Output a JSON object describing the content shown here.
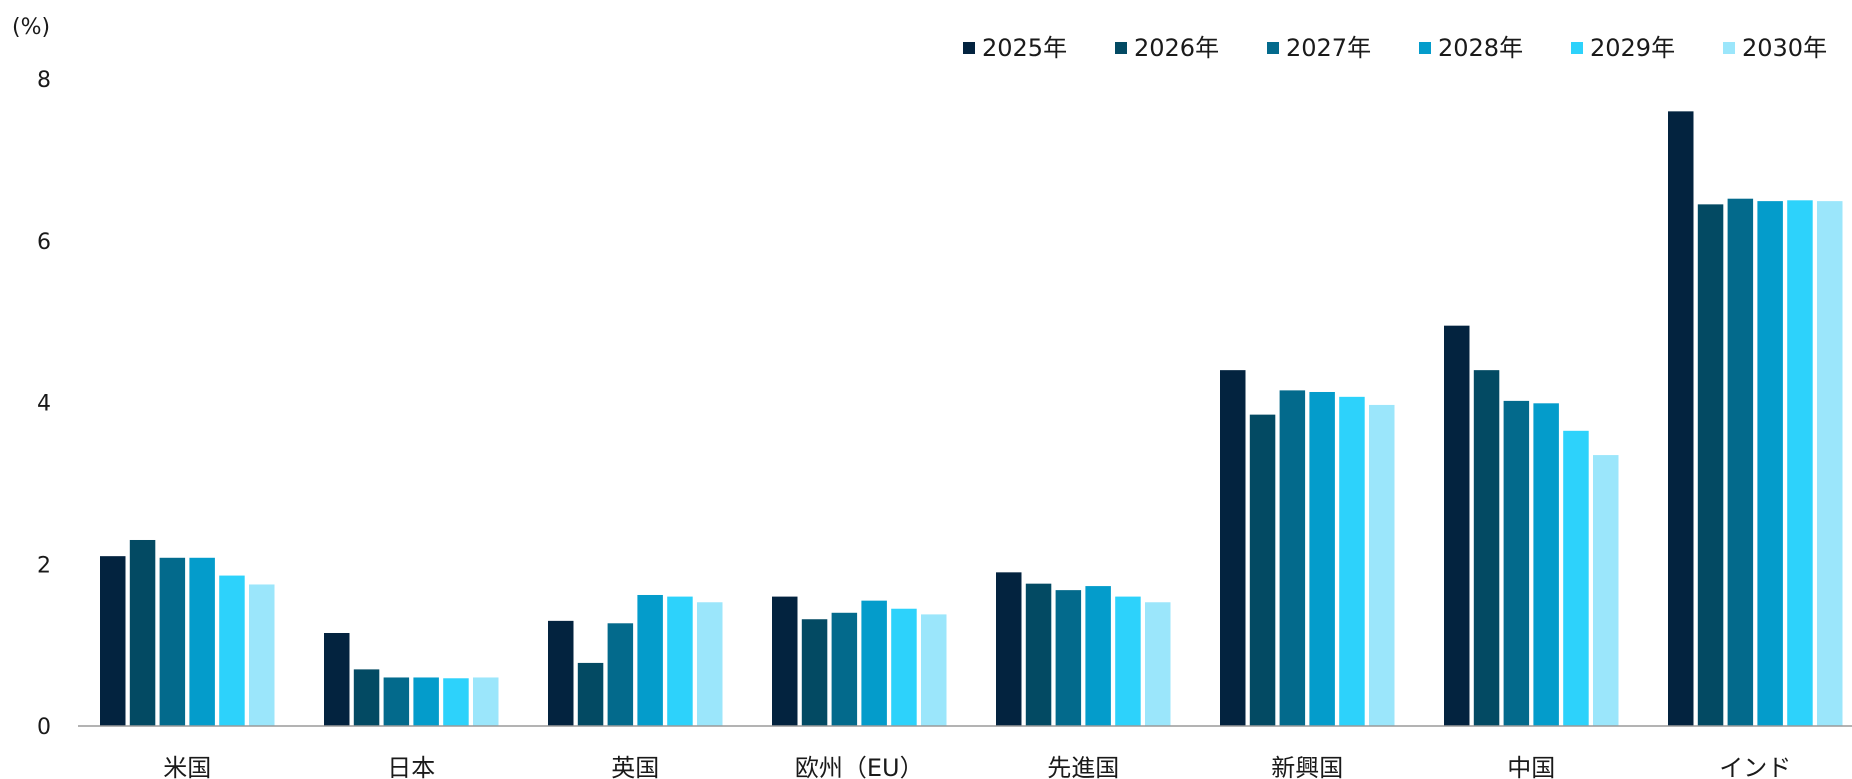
{
  "chart_data": {
    "type": "bar",
    "unit_label": "(%)",
    "categories": [
      "米国",
      "日本",
      "英国",
      "欧州（EU）",
      "先進国",
      "新興国",
      "中国",
      "インド"
    ],
    "series": [
      {
        "name": "2025年",
        "color": "#03233f",
        "values": [
          2.1,
          1.15,
          1.3,
          1.6,
          1.9,
          4.4,
          4.95,
          7.6
        ]
      },
      {
        "name": "2026年",
        "color": "#034a63",
        "values": [
          2.3,
          0.7,
          0.78,
          1.32,
          1.76,
          3.85,
          4.4,
          6.45
        ]
      },
      {
        "name": "2027年",
        "color": "#036a8c",
        "values": [
          2.08,
          0.6,
          1.27,
          1.4,
          1.68,
          4.15,
          4.02,
          6.52
        ]
      },
      {
        "name": "2028年",
        "color": "#049ccb",
        "values": [
          2.08,
          0.6,
          1.62,
          1.55,
          1.73,
          4.13,
          3.99,
          6.49
        ]
      },
      {
        "name": "2029年",
        "color": "#2dd2fb",
        "values": [
          1.86,
          0.59,
          1.6,
          1.45,
          1.6,
          4.07,
          3.65,
          6.5
        ]
      },
      {
        "name": "2030年",
        "color": "#9be6fb",
        "values": [
          1.75,
          0.6,
          1.53,
          1.38,
          1.53,
          3.97,
          3.35,
          6.49
        ]
      }
    ],
    "ylim": [
      0,
      8
    ],
    "yticks": [
      0,
      2,
      4,
      6,
      8
    ],
    "grid": false,
    "legend_position": "top-right"
  }
}
